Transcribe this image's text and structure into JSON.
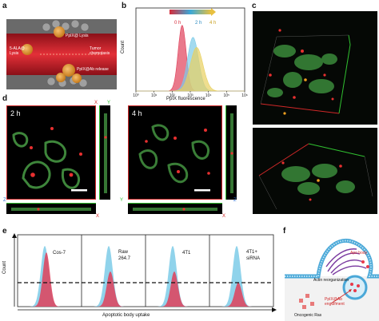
{
  "panels": {
    "a": {
      "label": "a",
      "labels": [
        "PpIX@ Lysis",
        "5-ALA@ Lysis",
        "Tumor chemotaxis",
        "PpIX@Ab release"
      ]
    },
    "b": {
      "label": "b",
      "legend": [
        "0 h",
        "2 h",
        "4 h"
      ],
      "xlabel": "PpIX fluorescence",
      "ylabel": "Count",
      "xticks": [
        "10⁰",
        "10¹",
        "10²",
        "10³",
        "10⁴",
        "10⁵",
        "10⁶"
      ]
    },
    "c": {
      "label": "c"
    },
    "d": {
      "label": "d",
      "times": [
        "2 h",
        "4 h"
      ],
      "axes": {
        "x": "X",
        "y": "Y",
        "z": "Z"
      }
    },
    "e": {
      "label": "e",
      "ylabel": "Count",
      "xlabel": "Apoptotic body uptake",
      "groups": [
        "Cos-7",
        "Raw 264.7",
        "4T1",
        "4T1+ siRNA"
      ]
    },
    "f": {
      "label": "f",
      "labels": [
        "Actin reorganization",
        "PpIX@Ab engulfment",
        "Oncogenic Ras",
        "Apo body"
      ]
    }
  },
  "colors": {
    "vessel": "#d8232a",
    "cell_orange": "#f0a030",
    "hist_red": "#e0405a",
    "hist_blue": "#7ccbe8",
    "hist_yellow": "#e8d060",
    "hist_green": "#5aa87a",
    "membrane_blue": "#4aa8d8",
    "actin_purple": "#7a3aa0",
    "micro_bg": "#050805",
    "micro_green": "#4ea84a"
  },
  "chart_data": {
    "type": "area",
    "title": "",
    "xlabel": "PpIX fluorescence",
    "ylabel": "Count",
    "xscale": "log",
    "x_range": [
      1,
      1000000
    ],
    "series": [
      {
        "name": "0 h",
        "peak_log10": 2.55,
        "width": 0.22,
        "height": 0.98
      },
      {
        "name": "2 h",
        "peak_log10": 3.15,
        "width": 0.3,
        "height": 0.8
      },
      {
        "name": "4 h",
        "peak_log10": 3.35,
        "width": 0.35,
        "height": 0.65
      }
    ]
  }
}
